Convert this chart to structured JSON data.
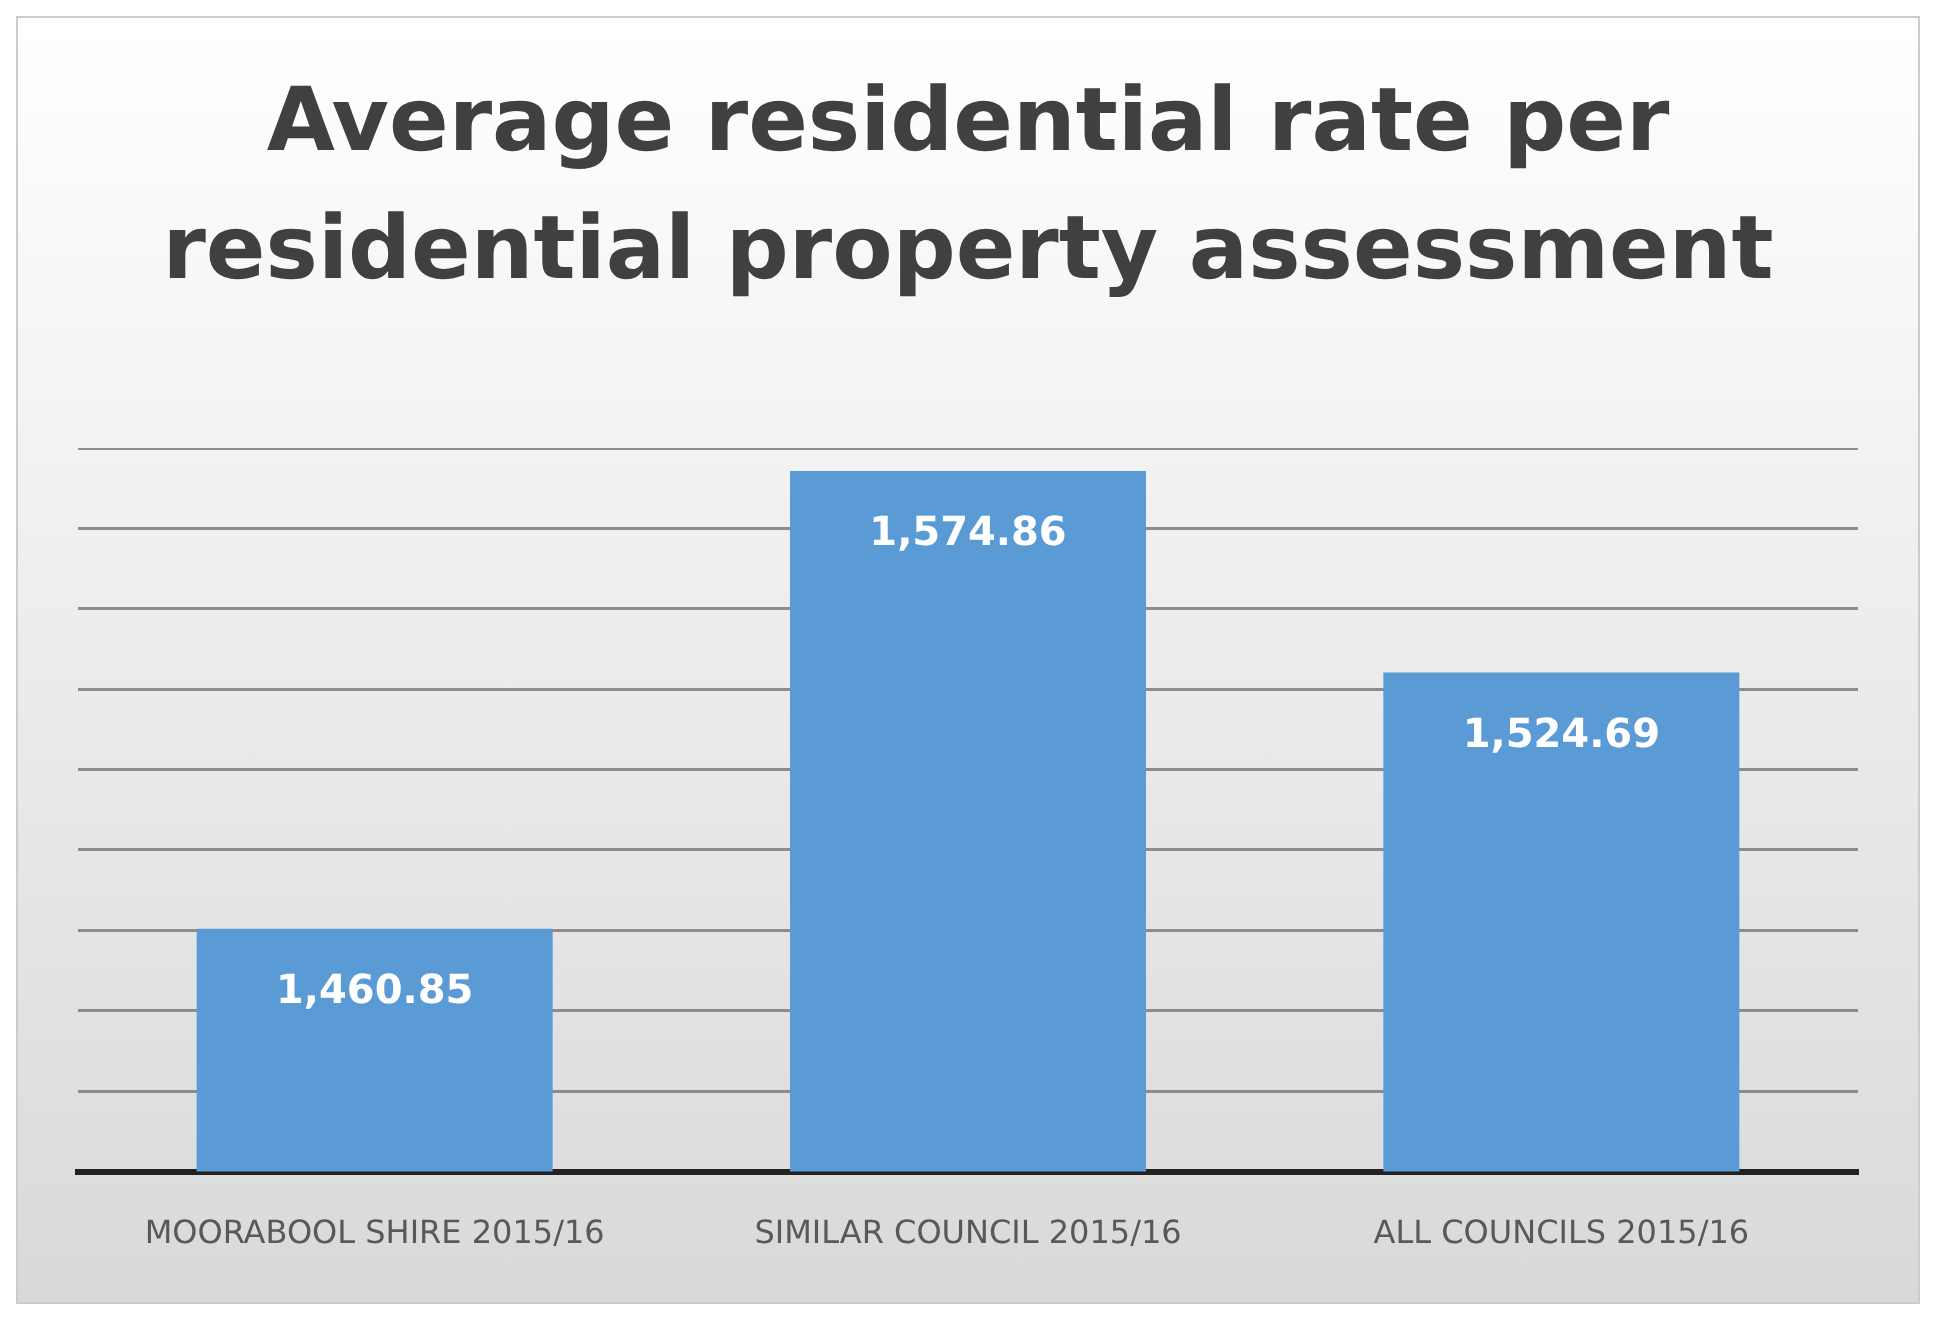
{
  "chart_data": {
    "type": "bar",
    "title": "Average residential rate per residential property assessment",
    "categories": [
      "MOORABOOL SHIRE 2015/16",
      "SIMILAR COUNCIL 2015/16",
      "ALL COUNCILS 2015/16"
    ],
    "values": [
      1460.85,
      1574.86,
      1524.69
    ],
    "color": "#5b9bd5",
    "value_labels": [
      "1,460.85",
      "1,574.86",
      "1,524.69"
    ],
    "grid": "y",
    "tick_labels": "x"
  }
}
